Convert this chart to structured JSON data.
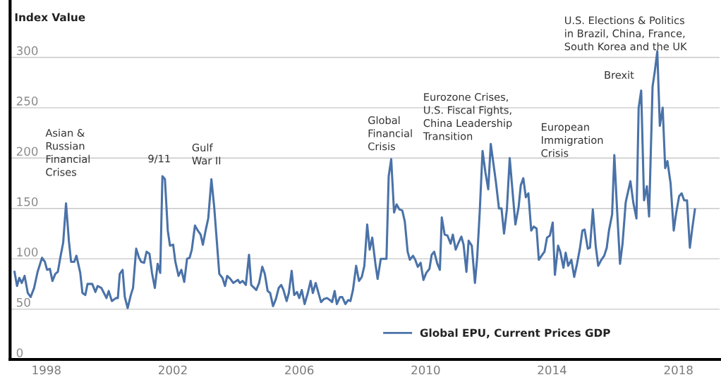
{
  "chart_data": {
    "type": "line",
    "ylabel": "Index Value",
    "x": [
      1996.99,
      1997.07,
      1997.14,
      1997.22,
      1997.31,
      1997.41,
      1997.5,
      1997.61,
      1997.72,
      1997.86,
      1997.95,
      1998.02,
      1998.11,
      1998.19,
      1998.28,
      1998.36,
      1998.45,
      1998.53,
      1998.62,
      1998.71,
      1998.78,
      1998.88,
      1998.95,
      1999.07,
      1999.14,
      1999.23,
      1999.3,
      1999.45,
      1999.55,
      1999.62,
      1999.74,
      1999.82,
      1999.9,
      1999.97,
      2000.07,
      2000.2,
      2000.26,
      2000.32,
      2000.41,
      2000.48,
      2000.57,
      2000.67,
      2000.74,
      2000.84,
      2000.93,
      2001.0,
      2001.09,
      2001.17,
      2001.26,
      2001.34,
      2001.43,
      2001.52,
      2001.6,
      2001.67,
      2001.75,
      2001.84,
      2001.91,
      2002.01,
      2002.08,
      2002.18,
      2002.27,
      2002.36,
      2002.45,
      2002.53,
      2002.6,
      2002.7,
      2002.79,
      2002.88,
      2002.95,
      2003.05,
      2003.12,
      2003.22,
      2003.31,
      2003.39,
      2003.47,
      2003.57,
      2003.65,
      2003.72,
      2003.82,
      2003.91,
      2004.06,
      2004.12,
      2004.21,
      2004.31,
      2004.41,
      2004.48,
      2004.64,
      2004.73,
      2004.83,
      2004.91,
      2005.0,
      2005.08,
      2005.17,
      2005.26,
      2005.35,
      2005.43,
      2005.5,
      2005.6,
      2005.67,
      2005.76,
      2005.84,
      2005.93,
      2006.0,
      2006.08,
      2006.17,
      2006.27,
      2006.36,
      2006.43,
      2006.52,
      2006.6,
      2006.69,
      2006.78,
      2006.88,
      2006.97,
      2007.04,
      2007.12,
      2007.19,
      2007.29,
      2007.36,
      2007.46,
      2007.55,
      2007.62,
      2007.7,
      2007.8,
      2007.89,
      2007.98,
      2008.06,
      2008.15,
      2008.23,
      2008.31,
      2008.41,
      2008.48,
      2008.58,
      2008.67,
      2008.76,
      2008.83,
      2008.91,
      2009.0,
      2009.08,
      2009.17,
      2009.26,
      2009.34,
      2009.43,
      2009.5,
      2009.6,
      2009.67,
      2009.75,
      2009.84,
      2009.93,
      2010.02,
      2010.12,
      2010.19,
      2010.27,
      2010.37,
      2010.45,
      2010.51,
      2010.6,
      2010.69,
      2010.79,
      2010.86,
      2010.95,
      2011.04,
      2011.13,
      2011.2,
      2011.29,
      2011.36,
      2011.46,
      2011.56,
      2011.63,
      2011.71,
      2011.8,
      2011.89,
      2011.98,
      2012.06,
      2012.22,
      2012.32,
      2012.4,
      2012.48,
      2012.57,
      2012.66,
      2012.76,
      2012.84,
      2012.94,
      2013.01,
      2013.09,
      2013.17,
      2013.25,
      2013.34,
      2013.42,
      2013.51,
      2013.58,
      2013.69,
      2013.76,
      2013.84,
      2013.93,
      2014.02,
      2014.09,
      2014.19,
      2014.26,
      2014.36,
      2014.43,
      2014.51,
      2014.61,
      2014.7,
      2014.79,
      2014.88,
      2014.96,
      2015.03,
      2015.13,
      2015.2,
      2015.29,
      2015.38,
      2015.46,
      2015.56,
      2015.65,
      2015.73,
      2015.8,
      2015.9,
      2015.97,
      2016.06,
      2016.15,
      2016.23,
      2016.33,
      2016.4,
      2016.48,
      2016.57,
      2016.67,
      2016.74,
      2016.82,
      2016.91,
      2017.0,
      2017.07,
      2017.18,
      2017.25,
      2017.33,
      2017.41,
      2017.5,
      2017.58,
      2017.65,
      2017.75,
      2017.85,
      2017.92,
      2018.02,
      2018.1,
      2018.18,
      2018.27,
      2018.36,
      2018.44,
      2018.52
    ],
    "series": [
      {
        "name": "Global EPU, Current Prices GDP",
        "color": "#4a72a8",
        "values": [
          87,
          73,
          81,
          76,
          83,
          66,
          62,
          71,
          87,
          101,
          97,
          89,
          90,
          78,
          85,
          87,
          103,
          116,
          155,
          118,
          97,
          97,
          103,
          86,
          66,
          64,
          75,
          75,
          67,
          73,
          71,
          66,
          61,
          68,
          58,
          61,
          61,
          85,
          89,
          62,
          51,
          64,
          71,
          110,
          101,
          97,
          96,
          107,
          105,
          86,
          71,
          95,
          86,
          182,
          179,
          128,
          113,
          114,
          97,
          83,
          89,
          77,
          100,
          101,
          109,
          133,
          128,
          124,
          114,
          130,
          140,
          179,
          151,
          118,
          85,
          81,
          73,
          83,
          80,
          76,
          79,
          76,
          78,
          74,
          104,
          74,
          69,
          76,
          92,
          85,
          68,
          66,
          53,
          60,
          71,
          74,
          69,
          58,
          66,
          88,
          64,
          67,
          61,
          69,
          55,
          66,
          78,
          66,
          76,
          67,
          57,
          60,
          61,
          59,
          57,
          68,
          55,
          62,
          62,
          55,
          59,
          58,
          69,
          93,
          78,
          82,
          93,
          134,
          109,
          121,
          95,
          80,
          100,
          100,
          100,
          182,
          199,
          146,
          154,
          149,
          148,
          137,
          107,
          99,
          103,
          99,
          92,
          96,
          79,
          86,
          90,
          104,
          107,
          95,
          89,
          141,
          124,
          123,
          115,
          124,
          109,
          116,
          122,
          114,
          87,
          118,
          113,
          76,
          101,
          146,
          207,
          186,
          169,
          214,
          177,
          150,
          150,
          125,
          149,
          200,
          163,
          134,
          151,
          173,
          180,
          161,
          165,
          128,
          132,
          130,
          99,
          104,
          107,
          121,
          123,
          136,
          84,
          113,
          107,
          91,
          106,
          93,
          99,
          82,
          95,
          110,
          128,
          129,
          110,
          111,
          149,
          113,
          93,
          99,
          103,
          111,
          128,
          144,
          203,
          147,
          95,
          115,
          156,
          166,
          177,
          156,
          140,
          250,
          267,
          158,
          172,
          142,
          271,
          286,
          306,
          232,
          250,
          190,
          197,
          175,
          128,
          144,
          162,
          165,
          158,
          158,
          111,
          131,
          149
        ]
      }
    ],
    "xlim": [
      1996.85,
      2019.3
    ],
    "ylim": [
      0,
      357
    ],
    "xticks": [
      1998,
      2002,
      2006,
      2010,
      2014,
      2018
    ],
    "yticks": [
      0,
      50,
      100,
      150,
      200,
      250,
      300
    ],
    "grid": "y",
    "legend": "bottom right",
    "marker": "none",
    "line_style": "solid",
    "annotations": [
      {
        "text": "Asian &\nRussian\nFinancial\nCrises",
        "x": 1998.62,
        "y": 155
      },
      {
        "text": "9/11",
        "x": 2001.67,
        "y": 182
      },
      {
        "text": "Gulf\nWar II",
        "x": 2003.22,
        "y": 179
      },
      {
        "text": "Global\nFinancial\nCrisis",
        "x": 2008.91,
        "y": 199
      },
      {
        "text": "Eurozone Crises,\nU.S. Fiscal Fights,\nChina Leadership\nTransition",
        "x": 2012.06,
        "y": 214
      },
      {
        "text": "European\nImmigration\nCrisis",
        "x": 2015.97,
        "y": 203
      },
      {
        "text": "Brexit",
        "x": 2016.82,
        "y": 267
      },
      {
        "text": "U.S. Elections & Politics\nin Brazil, China, France,\nSouth Korea and the UK",
        "x": 2017.33,
        "y": 306
      }
    ]
  }
}
